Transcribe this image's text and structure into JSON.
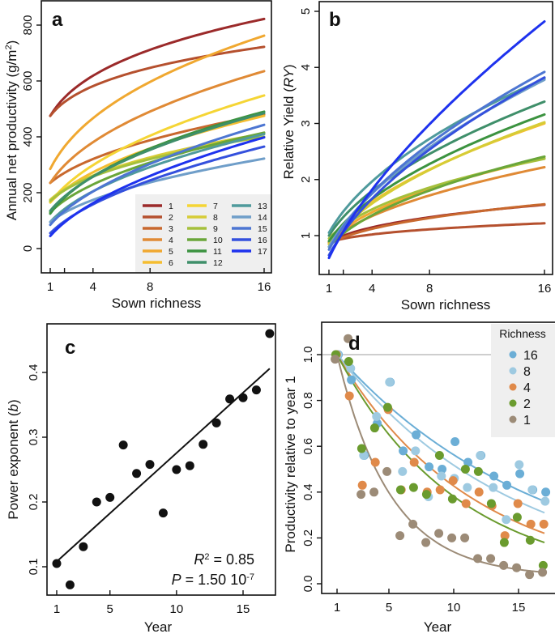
{
  "chart_data": [
    {
      "panel": "a",
      "type": "line",
      "title": "",
      "xlabel": "Sown richness",
      "ylabel": "Annual net productivity (g/m2)",
      "xlim": [
        1,
        16
      ],
      "ylim": [
        -90,
        880
      ],
      "xticks": [
        1,
        2,
        4,
        8,
        16
      ],
      "xtick_labels": [
        "1",
        "",
        "4",
        "8",
        "16"
      ],
      "yticks": [
        0,
        200,
        400,
        600,
        800
      ],
      "grid": false,
      "legend": {
        "placement": "bottom-right",
        "columns": 3
      },
      "series": [
        {
          "name": "1",
          "color": "#9b2a2a",
          "y_at_1": 475,
          "y_at_16": 822
        },
        {
          "name": "2",
          "color": "#b5502e",
          "y_at_1": 475,
          "y_at_16": 722
        },
        {
          "name": "3",
          "color": "#c8682e",
          "y_at_1": 235,
          "y_at_16": 480
        },
        {
          "name": "4",
          "color": "#e08a35",
          "y_at_1": 235,
          "y_at_16": 635
        },
        {
          "name": "5",
          "color": "#f0a830",
          "y_at_1": 285,
          "y_at_16": 762
        },
        {
          "name": "6",
          "color": "#f5bd30",
          "y_at_1": 165,
          "y_at_16": 475
        },
        {
          "name": "7",
          "color": "#f5d535",
          "y_at_1": 165,
          "y_at_16": 548
        },
        {
          "name": "8",
          "color": "#d6cc36",
          "y_at_1": 175,
          "y_at_16": 412
        },
        {
          "name": "9",
          "color": "#a5c03c",
          "y_at_1": 170,
          "y_at_16": 400
        },
        {
          "name": "10",
          "color": "#6aa63a",
          "y_at_1": 130,
          "y_at_16": 415
        },
        {
          "name": "11",
          "color": "#3c9340",
          "y_at_1": 125,
          "y_at_16": 490
        },
        {
          "name": "12",
          "color": "#3f8f6a",
          "y_at_1": 135,
          "y_at_16": 485
        },
        {
          "name": "13",
          "color": "#4f9a9c",
          "y_at_1": 95,
          "y_at_16": 410
        },
        {
          "name": "14",
          "color": "#6f9ec9",
          "y_at_1": 95,
          "y_at_16": 322
        },
        {
          "name": "15",
          "color": "#4d76d2",
          "y_at_1": 85,
          "y_at_16": 443
        },
        {
          "name": "16",
          "color": "#3450dd",
          "y_at_1": 55,
          "y_at_16": 365
        },
        {
          "name": "17",
          "color": "#1e32ee",
          "y_at_1": 45,
          "y_at_16": 398
        }
      ]
    },
    {
      "panel": "b",
      "type": "line",
      "title": "",
      "xlabel": "Sown richness",
      "ylabel": "Relative Yield (RY)",
      "xlim": [
        1,
        16
      ],
      "ylim": [
        0.35,
        5.15
      ],
      "xticks": [
        1,
        2,
        4,
        8,
        16
      ],
      "xtick_labels": [
        "1",
        "",
        "4",
        "8",
        "16"
      ],
      "yticks": [
        1,
        2,
        3,
        4,
        5
      ],
      "grid": false,
      "series": [
        {
          "name": "1",
          "color": "#9b2a2a",
          "y_at_1": 0.88,
          "y_at_16": 1.55
        },
        {
          "name": "2",
          "color": "#b5502e",
          "y_at_1": 0.88,
          "y_at_16": 1.22
        },
        {
          "name": "3",
          "color": "#c8682e",
          "y_at_1": 0.85,
          "y_at_16": 1.56
        },
        {
          "name": "4",
          "color": "#e08a35",
          "y_at_1": 0.88,
          "y_at_16": 2.22
        },
        {
          "name": "5",
          "color": "#f0a830",
          "y_at_1": 0.9,
          "y_at_16": 2.38
        },
        {
          "name": "6",
          "color": "#f5bd30",
          "y_at_1": 0.9,
          "y_at_16": 3.0
        },
        {
          "name": "7",
          "color": "#f5d535",
          "y_at_1": 0.85,
          "y_at_16": 3.02
        },
        {
          "name": "8",
          "color": "#d6cc36",
          "y_at_1": 0.85,
          "y_at_16": 3.02
        },
        {
          "name": "9",
          "color": "#a5c03c",
          "y_at_1": 0.95,
          "y_at_16": 2.37
        },
        {
          "name": "10",
          "color": "#6aa63a",
          "y_at_1": 0.8,
          "y_at_16": 2.41
        },
        {
          "name": "11",
          "color": "#3c9340",
          "y_at_1": 0.9,
          "y_at_16": 3.16
        },
        {
          "name": "12",
          "color": "#3f8f6a",
          "y_at_1": 1.0,
          "y_at_16": 3.39
        },
        {
          "name": "13",
          "color": "#4f9a9c",
          "y_at_1": 1.05,
          "y_at_16": 3.8
        },
        {
          "name": "14",
          "color": "#6f9ec9",
          "y_at_1": 0.8,
          "y_at_16": 3.78
        },
        {
          "name": "15",
          "color": "#4d76d2",
          "y_at_1": 0.75,
          "y_at_16": 3.92
        },
        {
          "name": "16",
          "color": "#3450dd",
          "y_at_1": 0.65,
          "y_at_16": 3.82
        },
        {
          "name": "17",
          "color": "#1e32ee",
          "y_at_1": 0.6,
          "y_at_16": 4.82
        }
      ]
    },
    {
      "panel": "c",
      "type": "scatter",
      "title": "",
      "xlabel": "Year",
      "ylabel": "Power exponent (b)",
      "xlim": [
        0.3,
        17.3
      ],
      "ylim": [
        0.058,
        0.475
      ],
      "xticks": [
        1,
        5,
        10,
        15
      ],
      "yticks": [
        0.1,
        0.2,
        0.3,
        0.4
      ],
      "grid": false,
      "x": [
        1,
        2,
        3,
        4,
        5,
        6,
        7,
        8,
        9,
        10,
        11,
        12,
        13,
        14,
        15,
        16,
        17
      ],
      "y": [
        0.105,
        0.072,
        0.131,
        0.2,
        0.207,
        0.288,
        0.244,
        0.258,
        0.183,
        0.25,
        0.256,
        0.289,
        0.322,
        0.359,
        0.361,
        0.373,
        0.46
      ],
      "fit": {
        "type": "linear",
        "x0": 1,
        "y0": 0.108,
        "x1": 17,
        "y1": 0.406
      },
      "annotations": {
        "r2_label": "R",
        "r2_value": " = 0.85",
        "p_label": "P",
        "p_value": " = 1.50 10",
        "p_exp": "-7"
      }
    },
    {
      "panel": "d",
      "type": "scatter",
      "title": "",
      "xlabel": "Year",
      "ylabel": "Productivity relative to year 1",
      "xlim": [
        0.5,
        17.5
      ],
      "ylim": [
        -0.05,
        1.17
      ],
      "xticks": [
        1,
        5,
        10,
        15
      ],
      "yticks": [
        0.0,
        0.2,
        0.4,
        0.6,
        0.8,
        1.0
      ],
      "ytick_labels": [
        "0.0",
        "0.2",
        "0.4",
        "0.6",
        "0.8",
        "1.0"
      ],
      "reference_line": 1.0,
      "grid": false,
      "legend": {
        "title": "Richness",
        "placement": "top-right"
      },
      "x": [
        1,
        2,
        3,
        4,
        5,
        6,
        7,
        8,
        9,
        10,
        11,
        12,
        13,
        14,
        15,
        16,
        17
      ],
      "series": [
        {
          "name": "16",
          "color": "#6baed6",
          "y": [
            1.0,
            0.89,
            0.56,
            0.7,
            0.88,
            0.58,
            0.65,
            0.51,
            0.5,
            0.62,
            0.53,
            0.56,
            0.47,
            0.43,
            0.48,
            0.41,
            0.4
          ],
          "fit_end": 0.36
        },
        {
          "name": "8",
          "color": "#9ecae1",
          "y": [
            1.0,
            0.94,
            0.56,
            0.73,
            0.88,
            0.49,
            0.58,
            0.38,
            0.47,
            0.46,
            0.42,
            0.56,
            0.42,
            0.28,
            0.52,
            0.41,
            0.36
          ],
          "fit_end": 0.31
        },
        {
          "name": "4",
          "color": "#e08a4a",
          "y": [
            1.0,
            0.82,
            0.43,
            0.53,
            0.76,
            0.41,
            0.53,
            0.4,
            0.41,
            0.45,
            0.35,
            0.4,
            0.34,
            0.21,
            0.35,
            0.26,
            0.26
          ],
          "fit_end": 0.22
        },
        {
          "name": "2",
          "color": "#6a9b2e",
          "y": [
            1.0,
            0.97,
            0.59,
            0.68,
            0.77,
            0.41,
            0.42,
            0.39,
            0.56,
            0.37,
            0.5,
            0.49,
            0.35,
            0.18,
            0.29,
            0.19,
            0.08
          ],
          "fit_end": 0.18
        },
        {
          "name": "1",
          "color": "#9c8b77",
          "y": [
            0.98,
            1.07,
            0.39,
            0.4,
            0.49,
            0.21,
            0.26,
            0.18,
            0.22,
            0.2,
            0.2,
            0.11,
            0.11,
            0.08,
            0.07,
            0.04,
            0.05
          ],
          "fit_end": 0.05
        }
      ]
    }
  ],
  "labels": {
    "a": "a",
    "b": "b",
    "c": "c",
    "d": "d",
    "legend_title_d": "Richness"
  }
}
